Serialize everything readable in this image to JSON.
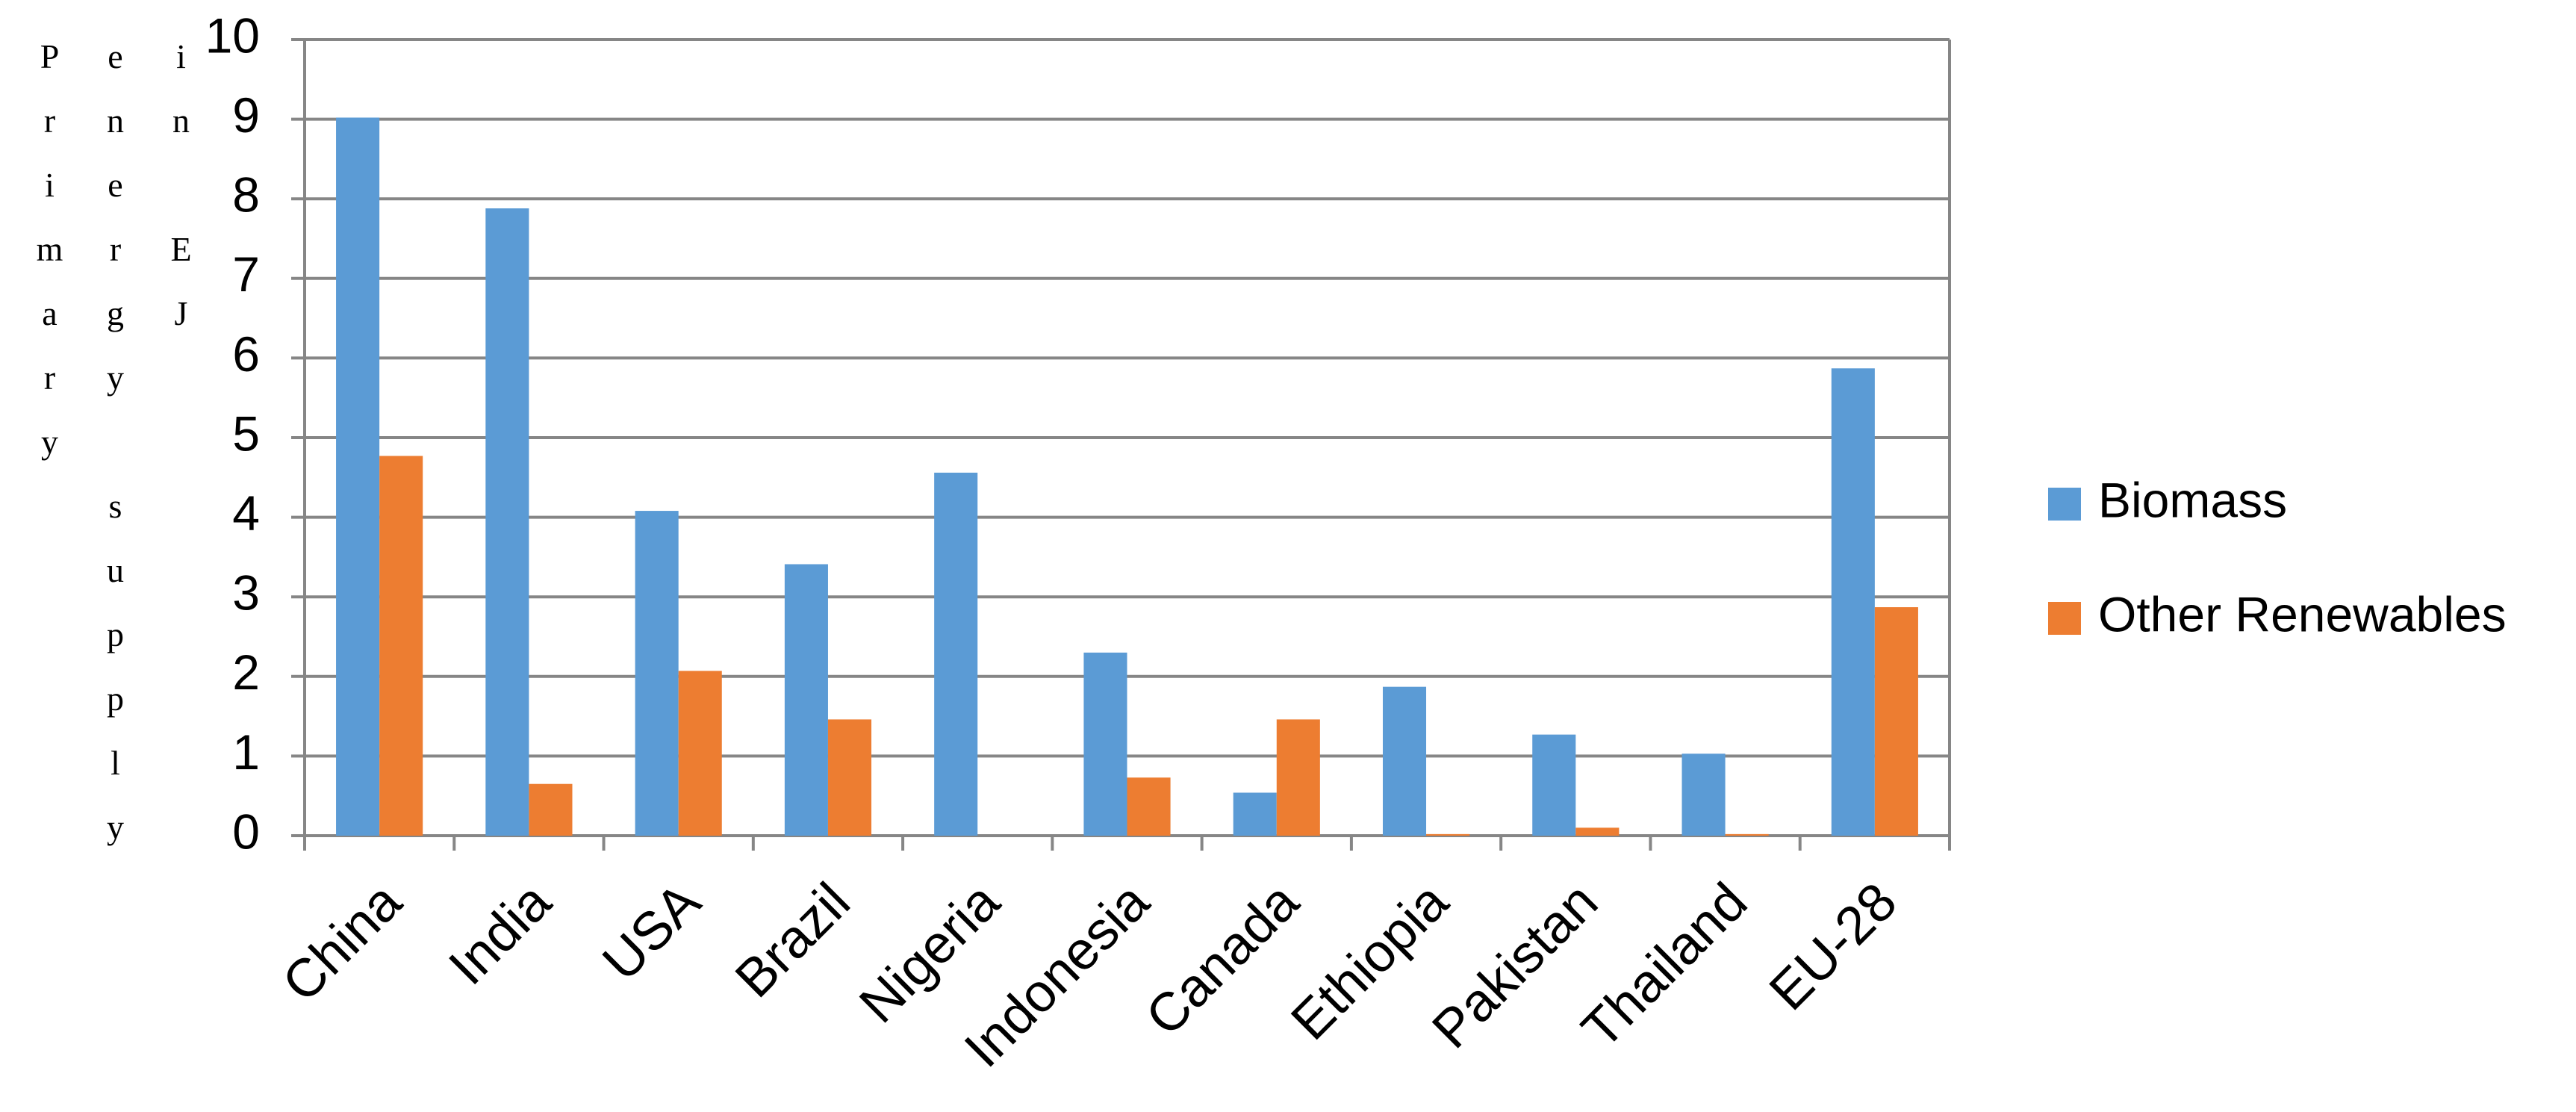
{
  "chart_data": {
    "type": "bar",
    "y_label": "Primary energy supply in EJ",
    "categories": [
      "China",
      "India",
      "USA",
      "Brazil",
      "Nigeria",
      "Indonesia",
      "Canada",
      "Ethiopia",
      "Pakistan",
      "Thailand",
      "EU-28"
    ],
    "series": [
      {
        "name": "Biomass",
        "color": "#5b9bd5",
        "values": [
          9.02,
          7.88,
          4.08,
          3.41,
          4.56,
          2.3,
          0.54,
          1.87,
          1.27,
          1.03,
          5.87
        ]
      },
      {
        "name": "Other Renewables",
        "color": "#ed7d31",
        "values": [
          4.77,
          0.65,
          2.07,
          1.46,
          0,
          0.73,
          1.46,
          0.02,
          0.1,
          0.02,
          2.87
        ]
      }
    ],
    "ylim": [
      0,
      10
    ],
    "yticks": [
      0,
      1,
      2,
      3,
      4,
      5,
      6,
      7,
      8,
      9,
      10
    ],
    "grid": true,
    "legend": "right"
  }
}
